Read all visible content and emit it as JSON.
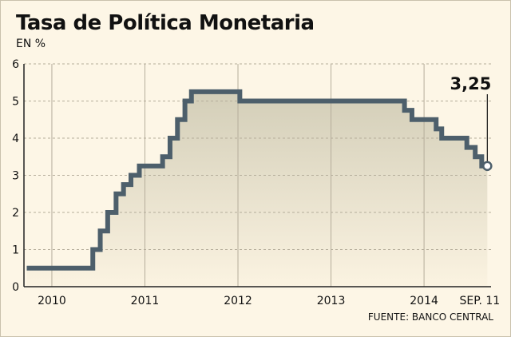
{
  "chart_data": {
    "type": "line",
    "title": "Tasa de Política Monetaria",
    "ylabel": "EN %",
    "source": "FUENTE: BANCO CENTRAL",
    "ylim": [
      0,
      6
    ],
    "xlim": [
      2009.7,
      2014.72
    ],
    "yticks": [
      "0",
      "1",
      "2",
      "3",
      "4",
      "5",
      "6"
    ],
    "xtick_labels": [
      {
        "x": 2010,
        "label": "2010"
      },
      {
        "x": 2011,
        "label": "2011"
      },
      {
        "x": 2012,
        "label": "2012"
      },
      {
        "x": 2013,
        "label": "2013"
      },
      {
        "x": 2014,
        "label": "2014"
      },
      {
        "x": 2014.41,
        "label": "SEP. 11"
      }
    ],
    "grid": true,
    "series": [
      {
        "x": [
          2009.73,
          2010.44,
          2010.52,
          2010.6,
          2010.69,
          2010.77,
          2010.85,
          2010.94,
          2011.04,
          2011.19,
          2011.27,
          2011.35,
          2011.43,
          2011.5,
          2012.02,
          2013.79,
          2013.87,
          2014.13,
          2014.19,
          2014.46,
          2014.55,
          2014.62,
          2014.68
        ],
        "y": [
          0.5,
          1.0,
          1.5,
          2.0,
          2.5,
          2.75,
          3.0,
          3.25,
          3.25,
          3.5,
          4.0,
          4.5,
          5.0,
          5.25,
          5.0,
          4.75,
          4.5,
          4.25,
          4.0,
          3.75,
          3.5,
          3.25,
          3.25
        ]
      }
    ],
    "annotation": {
      "label": "3,25",
      "x": 2014.68,
      "y": 3.25
    },
    "colors": {
      "line": "#4d5f6b",
      "area_top": "#d3ceb8",
      "area_bottom": "#fbf3e1",
      "grid": "#b5ad9b",
      "background": "#fdf6e6"
    }
  }
}
